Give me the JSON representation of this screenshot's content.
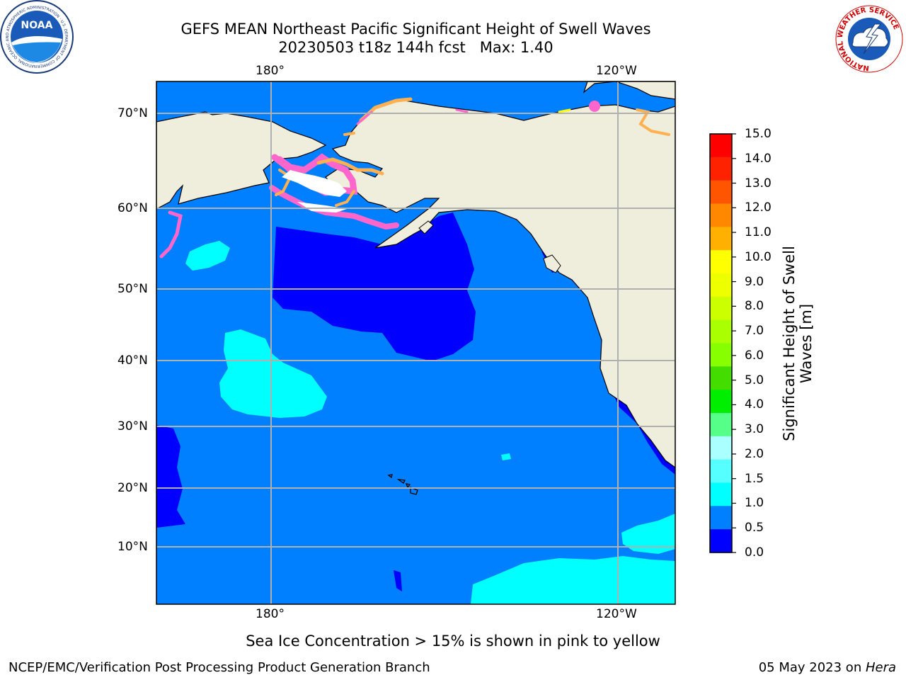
{
  "title": {
    "line1": "GEFS MEAN Northeast Pacific Significant Height of Swell Waves",
    "line2": "20230503 t18z 144h fcst   Max: 1.40"
  },
  "logos": {
    "noaa_text": "NOAA",
    "noaa_ring": "NATIONAL OCEANIC AND ATMOSPHERIC ADMINISTRATION · U.S. DEPARTMENT OF COMMERCE",
    "nws_ring": "NATIONAL WEATHER SERVICE"
  },
  "map": {
    "lon_labels": {
      "left": "180°",
      "right": "120°W"
    },
    "lat_labels": [
      "70°N",
      "60°N",
      "50°N",
      "40°N",
      "30°N",
      "20°N",
      "10°N"
    ],
    "colors": {
      "land": "#efeedd",
      "ocean_base": "#0080ff",
      "low_swell": "#0000ff",
      "mid_swell": "#00ffff",
      "grid": "#b0b0b0",
      "ice_pink": "#ff66cc",
      "ice_orange": "#ffb050"
    }
  },
  "colorbar": {
    "title": "Significant Height of Swell Waves [m]",
    "ticks": [
      "15.0",
      "14.0",
      "13.0",
      "12.0",
      "11.0",
      "10.0",
      "9.0",
      "8.0",
      "7.0",
      "6.0",
      "5.0",
      "4.0",
      "3.0",
      "2.0",
      "1.5",
      "1.0",
      "0.5",
      "0.0"
    ],
    "colors_top_to_bottom": [
      "#ff0000",
      "#ff2200",
      "#ff5500",
      "#ff8800",
      "#ffb000",
      "#ffff00",
      "#eeff00",
      "#ccff00",
      "#aaff00",
      "#88ff00",
      "#44dd00",
      "#00ee00",
      "#55ff88",
      "#aaffff",
      "#55ffff",
      "#00ffff",
      "#0080ff",
      "#0000ff"
    ]
  },
  "caption": "Sea Ice Concentration > 15% is shown in pink to yellow",
  "footer": {
    "left": "NCEP/EMC/Verification Post Processing Product Generation Branch",
    "right_date": "05 May 2023 on ",
    "right_host": "Hera"
  }
}
